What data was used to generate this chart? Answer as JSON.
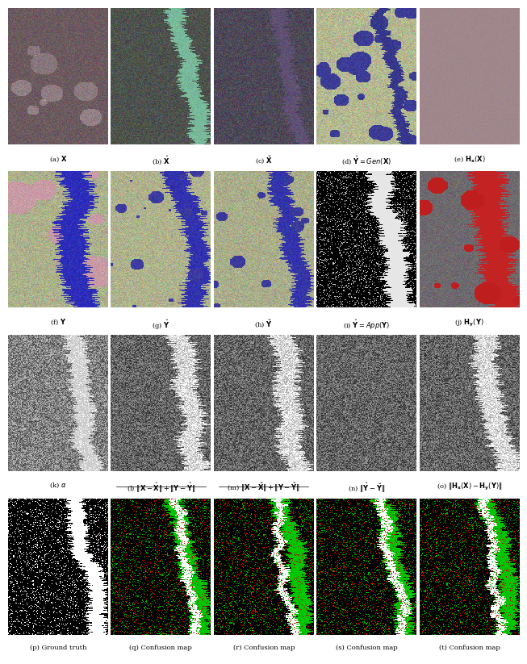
{
  "figsize": [
    6.4,
    8.09
  ],
  "dpi": 100,
  "bg_color": "#ffffff",
  "nrows": 4,
  "ncols": 5,
  "img_aspect": 1.55,
  "captions": [
    [
      "(a) $\\mathbf{X}$",
      "(b) $\\hat{\\mathbf{X}}$",
      "(c) $\\breve{\\mathbf{X}}$",
      "(d) $\\hat{\\mathbf{Y}}=Gen(\\mathbf{X})$",
      "(e) $\\mathbf{H}_{\\mathbf{x}}(\\mathbf{X})$"
    ],
    [
      "(f) $\\mathbf{Y}$",
      "(g) $\\hat{\\mathbf{Y}}$",
      "(h) $\\breve{\\mathbf{Y}}$",
      "(i) $\\hat{\\mathbf{Y}}=App(\\mathbf{Y})$",
      "(j) $\\mathbf{H}_{\\mathbf{y}}(\\mathbf{Y})$"
    ],
    [
      "(k) $\\alpha$",
      "(l) $\\|\\mathbf{X}-\\hat{\\mathbf{X}}\\|+\\|\\mathbf{Y}-\\hat{\\mathbf{Y}}\\|$",
      "(m) $\\|\\mathbf{X}-\\breve{\\mathbf{X}}\\|+\\|\\mathbf{Y}-\\breve{\\mathbf{Y}}\\|$",
      "(n) $\\|\\hat{\\mathbf{Y}}-\\breve{\\mathbf{Y}}\\|$",
      "(o) $\\|\\mathbf{H}_{\\mathbf{x}}(\\mathbf{X})-\\mathbf{H}_{\\mathbf{y}}(\\mathbf{Y})\\|$"
    ],
    [
      "(p) Ground truth",
      "(q) Confusion map",
      "(r) Confusion map",
      "(s) Confusion map",
      "(t) Confusion map"
    ]
  ],
  "caption_underline": [
    false,
    true,
    true,
    false,
    false
  ],
  "caption_fontsize": 6.0
}
